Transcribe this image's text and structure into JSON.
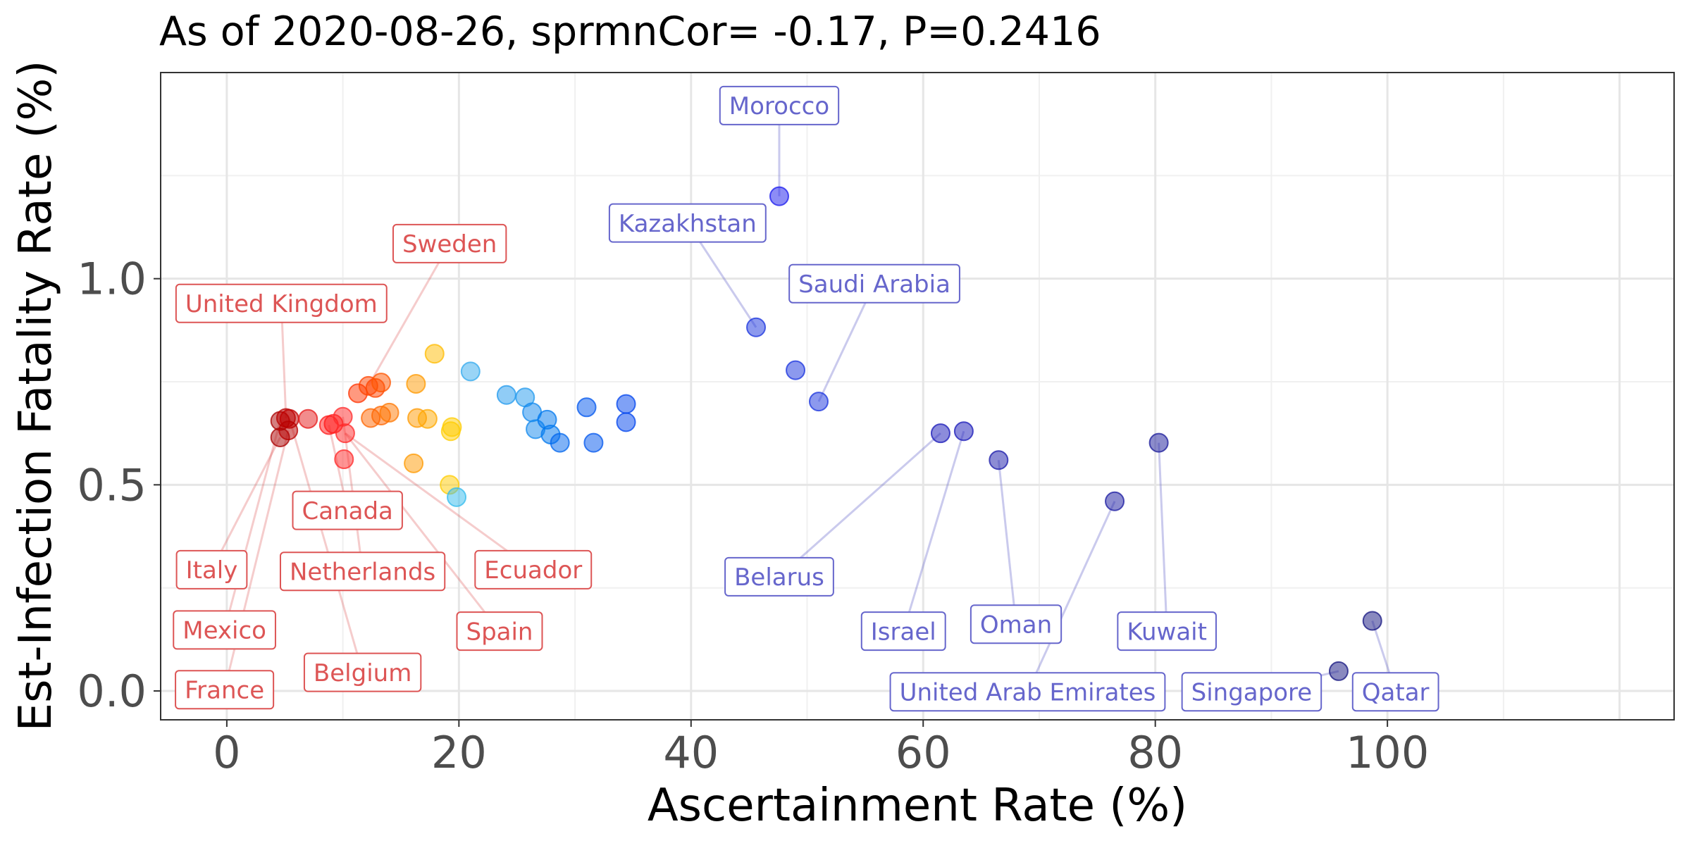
{
  "chart_data": {
    "type": "scatter",
    "title": "As of 2020-08-26, sprmnCor= -0.17, P=0.2416",
    "xlabel": "Ascertainment Rate (%)",
    "ylabel": "Est-Infection Fatality Rate (%)",
    "xlim": [
      -5.7,
      124.7
    ],
    "ylim": [
      -0.07,
      1.5
    ],
    "xticks": [
      0,
      20,
      40,
      60,
      80,
      100
    ],
    "xtick_labels": [
      "0",
      "20",
      "40",
      "60",
      "80",
      "100"
    ],
    "yticks": [
      0.0,
      0.5,
      1.0
    ],
    "ytick_labels": [
      "0.0",
      "0.5",
      "1.0"
    ],
    "grid": true,
    "legend": "none",
    "colors": {
      "red_label": "#dd5555",
      "blue_label": "#6666cc"
    },
    "points": [
      {
        "x": 4.6,
        "y": 0.615,
        "color": "#aa0000"
      },
      {
        "x": 4.6,
        "y": 0.655,
        "color": "#aa0000"
      },
      {
        "x": 5.1,
        "y": 0.662,
        "color": "#b80000"
      },
      {
        "x": 5.4,
        "y": 0.66,
        "color": "#c00000"
      },
      {
        "x": 5.3,
        "y": 0.632,
        "color": "#b80000"
      },
      {
        "x": 7.0,
        "y": 0.66,
        "color": "#e61a1a"
      },
      {
        "x": 8.8,
        "y": 0.645,
        "color": "#ff1a1a"
      },
      {
        "x": 9.2,
        "y": 0.648,
        "color": "#ff1a1a"
      },
      {
        "x": 10.0,
        "y": 0.665,
        "color": "#ff2a2a"
      },
      {
        "x": 10.2,
        "y": 0.625,
        "color": "#ff2a2a"
      },
      {
        "x": 10.1,
        "y": 0.562,
        "color": "#ff2a2a"
      },
      {
        "x": 11.3,
        "y": 0.722,
        "color": "#ff3300"
      },
      {
        "x": 12.2,
        "y": 0.74,
        "color": "#ff4400"
      },
      {
        "x": 12.8,
        "y": 0.735,
        "color": "#ff4400"
      },
      {
        "x": 13.3,
        "y": 0.748,
        "color": "#ff5500"
      },
      {
        "x": 12.4,
        "y": 0.662,
        "color": "#ff6600"
      },
      {
        "x": 13.3,
        "y": 0.668,
        "color": "#ff6600"
      },
      {
        "x": 14.0,
        "y": 0.675,
        "color": "#ff7700"
      },
      {
        "x": 16.3,
        "y": 0.745,
        "color": "#ff9900"
      },
      {
        "x": 16.4,
        "y": 0.662,
        "color": "#ff9900"
      },
      {
        "x": 16.1,
        "y": 0.552,
        "color": "#ff9900"
      },
      {
        "x": 17.3,
        "y": 0.66,
        "color": "#ffaa00"
      },
      {
        "x": 17.9,
        "y": 0.818,
        "color": "#ffbb00"
      },
      {
        "x": 19.2,
        "y": 0.5,
        "color": "#ffcc00"
      },
      {
        "x": 19.3,
        "y": 0.63,
        "color": "#ffcc00"
      },
      {
        "x": 19.4,
        "y": 0.64,
        "color": "#ffcc00"
      },
      {
        "x": 19.8,
        "y": 0.47,
        "color": "#33bbee"
      },
      {
        "x": 21.0,
        "y": 0.775,
        "color": "#33aaee"
      },
      {
        "x": 24.1,
        "y": 0.718,
        "color": "#2299ee"
      },
      {
        "x": 25.7,
        "y": 0.712,
        "color": "#2299ee"
      },
      {
        "x": 26.3,
        "y": 0.676,
        "color": "#1188ee"
      },
      {
        "x": 26.6,
        "y": 0.635,
        "color": "#1188ee"
      },
      {
        "x": 27.6,
        "y": 0.658,
        "color": "#0077ee"
      },
      {
        "x": 27.9,
        "y": 0.622,
        "color": "#0077ee"
      },
      {
        "x": 28.7,
        "y": 0.602,
        "color": "#0066ee"
      },
      {
        "x": 31.0,
        "y": 0.688,
        "color": "#0055ee"
      },
      {
        "x": 31.6,
        "y": 0.602,
        "color": "#0055ee"
      },
      {
        "x": 34.4,
        "y": 0.696,
        "color": "#0044ee"
      },
      {
        "x": 34.4,
        "y": 0.652,
        "color": "#0044ee"
      },
      {
        "x": 45.6,
        "y": 0.882,
        "color": "#1a33dd"
      },
      {
        "x": 47.6,
        "y": 1.2,
        "color": "#1a1aee"
      },
      {
        "x": 49.0,
        "y": 0.778,
        "color": "#1a33dd"
      },
      {
        "x": 51.0,
        "y": 0.702,
        "color": "#1a33dd"
      },
      {
        "x": 61.5,
        "y": 0.625,
        "color": "#1a1ab8"
      },
      {
        "x": 63.5,
        "y": 0.63,
        "color": "#1a1ab8"
      },
      {
        "x": 66.5,
        "y": 0.56,
        "color": "#1a1aaa"
      },
      {
        "x": 76.5,
        "y": 0.46,
        "color": "#1a1aa0"
      },
      {
        "x": 80.3,
        "y": 0.602,
        "color": "#1a1a99"
      },
      {
        "x": 95.8,
        "y": 0.048,
        "color": "#141480"
      },
      {
        "x": 98.7,
        "y": 0.17,
        "color": "#141480"
      }
    ],
    "annotations": [
      {
        "text": "Morocco",
        "label_x": 47.6,
        "label_y": 1.42,
        "point_x": 47.6,
        "point_y": 1.2,
        "group": "blue"
      },
      {
        "text": "Kazakhstan",
        "label_x": 39.7,
        "label_y": 1.135,
        "point_x": 45.6,
        "point_y": 0.882,
        "group": "blue"
      },
      {
        "text": "Saudi Arabia",
        "label_x": 55.8,
        "label_y": 0.988,
        "point_x": 51.0,
        "point_y": 0.702,
        "group": "blue"
      },
      {
        "text": "Belarus",
        "label_x": 47.6,
        "label_y": 0.277,
        "point_x": 61.5,
        "point_y": 0.625,
        "group": "blue"
      },
      {
        "text": "Israel",
        "label_x": 58.3,
        "label_y": 0.145,
        "point_x": 63.5,
        "point_y": 0.63,
        "group": "blue"
      },
      {
        "text": "Oman",
        "label_x": 68.0,
        "label_y": 0.162,
        "point_x": 66.5,
        "point_y": 0.56,
        "group": "blue"
      },
      {
        "text": "Kuwait",
        "label_x": 81.0,
        "label_y": 0.145,
        "point_x": 80.3,
        "point_y": 0.602,
        "group": "blue"
      },
      {
        "text": "United Arab Emirates",
        "label_x": 69.0,
        "label_y": -0.002,
        "point_x": 76.5,
        "point_y": 0.46,
        "group": "blue"
      },
      {
        "text": "Singapore",
        "label_x": 88.3,
        "label_y": -0.002,
        "point_x": 95.8,
        "point_y": 0.048,
        "group": "blue"
      },
      {
        "text": "Qatar",
        "label_x": 100.7,
        "label_y": -0.002,
        "point_x": 98.7,
        "point_y": 0.17,
        "group": "blue"
      },
      {
        "text": "Sweden",
        "label_x": 19.2,
        "label_y": 1.085,
        "point_x": 12.2,
        "point_y": 0.74,
        "group": "red"
      },
      {
        "text": "United Kingdom",
        "label_x": 4.7,
        "label_y": 0.94,
        "point_x": 5.1,
        "point_y": 0.662,
        "group": "red"
      },
      {
        "text": "Canada",
        "label_x": 10.4,
        "label_y": 0.438,
        "point_x": 8.8,
        "point_y": 0.645,
        "group": "red"
      },
      {
        "text": "Italy",
        "label_x": -1.3,
        "label_y": 0.294,
        "point_x": 4.6,
        "point_y": 0.615,
        "group": "red"
      },
      {
        "text": "Netherlands",
        "label_x": 11.7,
        "label_y": 0.29,
        "point_x": 10.0,
        "point_y": 0.665,
        "group": "red"
      },
      {
        "text": "Ecuador",
        "label_x": 26.4,
        "label_y": 0.294,
        "point_x": 10.2,
        "point_y": 0.625,
        "group": "red"
      },
      {
        "text": "Mexico",
        "label_x": -0.2,
        "label_y": 0.148,
        "point_x": 4.6,
        "point_y": 0.655,
        "group": "red"
      },
      {
        "text": "Spain",
        "label_x": 23.5,
        "label_y": 0.145,
        "point_x": 10.2,
        "point_y": 0.625,
        "group": "red"
      },
      {
        "text": "Belgium",
        "label_x": 11.7,
        "label_y": 0.045,
        "point_x": 5.4,
        "point_y": 0.66,
        "group": "red"
      },
      {
        "text": "France",
        "label_x": -0.2,
        "label_y": 0.003,
        "point_x": 5.3,
        "point_y": 0.632,
        "group": "red"
      }
    ]
  }
}
